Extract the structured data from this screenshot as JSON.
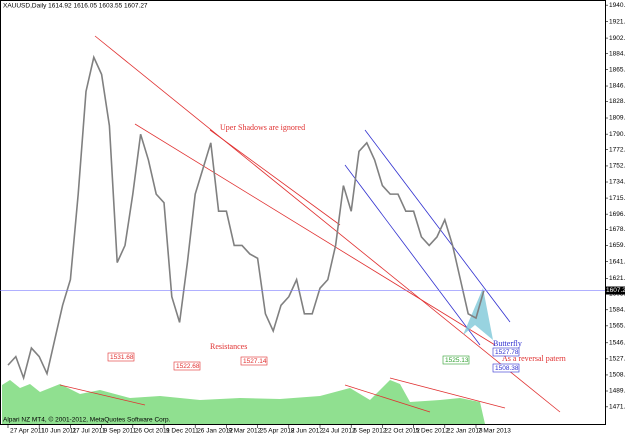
{
  "chart_data": {
    "type": "line",
    "title": "XAUUSD,Daily  1614.92 1616.05 1603.55 1607.27",
    "footer": "Alpari NZ MT4, © 2001-2012, MetaQuotes Software Corp.",
    "color": "#808080",
    "categories": [
      "27 Apr 2011",
      null,
      null,
      null,
      "10 Jun 2011",
      null,
      null,
      null,
      "27 Jul 2011",
      null,
      null,
      null,
      "9 Sep 2011",
      null,
      null,
      null,
      "26 Oct 2011",
      null,
      null,
      null,
      "9 Dec 2011",
      null,
      null,
      null,
      "26 Jan 2012",
      null,
      null,
      null,
      "9 Mar 2012",
      null,
      null,
      null,
      "25 Apr 2012",
      null,
      null,
      null,
      "8 Jun 2012",
      null,
      null,
      null,
      "24 Jul 2012",
      null,
      null,
      null,
      "6 Sep 2012",
      null,
      null,
      null,
      "22 Oct 2012",
      null,
      null,
      null,
      "5 Dec 2012",
      null,
      null,
      null,
      "22 Jan 2013",
      null,
      null,
      null,
      "7 Mar 2013",
      null
    ],
    "values": [
      1520,
      1530,
      1505,
      1540,
      1530,
      1510,
      1550,
      1590,
      1620,
      1720,
      1840,
      1880,
      1860,
      1800,
      1640,
      1660,
      1720,
      1790,
      1760,
      1720,
      1710,
      1600,
      1570,
      1640,
      1720,
      1750,
      1780,
      1700,
      1700,
      1660,
      1660,
      1650,
      1645,
      1580,
      1560,
      1590,
      1600,
      1620,
      1580,
      1580,
      1610,
      1620,
      1660,
      1730,
      1700,
      1770,
      1780,
      1760,
      1730,
      1720,
      1720,
      1700,
      1700,
      1670,
      1660,
      1670,
      1690,
      1660,
      1620,
      1580,
      1575,
      1607
    ],
    "ylim": [
      1450,
      1947
    ],
    "yticks": [
      {
        "value": 1940.95,
        "label": "1940.95"
      },
      {
        "value": 1921.7,
        "label": "1921.70"
      },
      {
        "value": 1902.45,
        "label": "1902.45"
      },
      {
        "value": 1884.2,
        "label": "1884.20"
      },
      {
        "value": 1865.6,
        "label": "1865.60"
      },
      {
        "value": 1846.4,
        "label": "1846.40"
      },
      {
        "value": 1828.4,
        "label": "1828.40"
      },
      {
        "value": 1809,
        "label": "1809.00"
      },
      {
        "value": 1790.1,
        "label": "1790.10"
      },
      {
        "value": 1772.05,
        "label": "1772.05"
      },
      {
        "value": 1752.95,
        "label": "1752.95"
      },
      {
        "value": 1734.15,
        "label": "1734.15"
      },
      {
        "value": 1715.35,
        "label": "1715.35"
      },
      {
        "value": 1696.55,
        "label": "1696.55"
      },
      {
        "value": 1678.75,
        "label": "1678.75"
      },
      {
        "value": 1659.95,
        "label": "1659.95"
      },
      {
        "value": 1641.15,
        "label": "1641.15"
      },
      {
        "value": 1621.4,
        "label": "1621.40"
      },
      {
        "value": 1603.55,
        "label": "1603.55"
      },
      {
        "value": 1584.75,
        "label": "1584.75"
      },
      {
        "value": 1565.95,
        "label": "1565.95"
      },
      {
        "value": 1546.15,
        "label": "1546.15"
      },
      {
        "value": 1527.35,
        "label": "1527.35"
      },
      {
        "value": 1508.55,
        "label": "1508.55"
      },
      {
        "value": 1489.75,
        "label": "1489.75"
      },
      {
        "value": 1471.25,
        "label": "1471.25"
      }
    ],
    "current_price": 1607.27,
    "annotations": {
      "shadows": "Uper Shadows are ignored",
      "resistances": "Resistances",
      "butterfly": "Butterfly",
      "reversal": "As a reversal patern",
      "p1": "1531.68",
      "p2": "1522.68",
      "p3": "1527.14",
      "p4": "1525.13",
      "p5": "1527.78",
      "p6": "1508.38"
    }
  }
}
